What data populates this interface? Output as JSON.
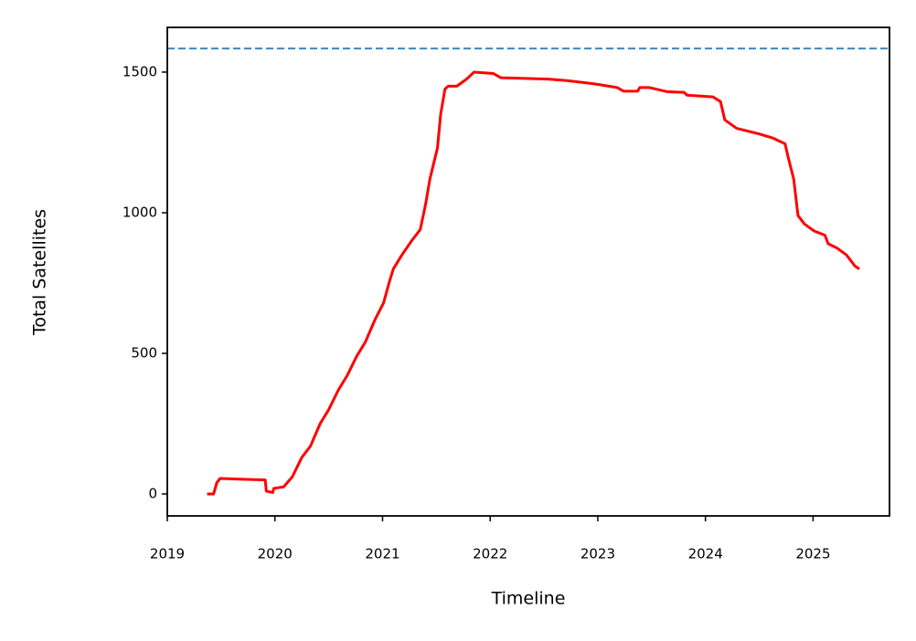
{
  "chart_data": {
    "type": "line",
    "x_label": "Timeline",
    "y_label": "Total Satellites",
    "x": [
      2019.37,
      2019.43,
      2019.46,
      2019.49,
      2019.91,
      2019.92,
      2019.98,
      2019.99,
      2020.08,
      2020.16,
      2020.25,
      2020.33,
      2020.42,
      2020.5,
      2020.59,
      2020.67,
      2020.76,
      2020.84,
      2020.93,
      2021.01,
      2021.06,
      2021.1,
      2021.18,
      2021.27,
      2021.35,
      2021.4,
      2021.44,
      2021.51,
      2021.54,
      2021.58,
      2021.61,
      2021.69,
      2021.78,
      2021.85,
      2022.03,
      2022.1,
      2022.54,
      2022.71,
      2022.97,
      2023.18,
      2023.24,
      2023.37,
      2023.39,
      2023.48,
      2023.65,
      2023.8,
      2023.83,
      2024.07,
      2024.14,
      2024.18,
      2024.29,
      2024.5,
      2024.63,
      2024.74,
      2024.77,
      2024.82,
      2024.86,
      2024.92,
      2025.01,
      2025.11,
      2025.14,
      2025.22,
      2025.31,
      2025.39,
      2025.43
    ],
    "series": [
      {
        "color": "#ff0000",
        "values": [
          0,
          0,
          40,
          55,
          50,
          10,
          5,
          20,
          25,
          60,
          130,
          170,
          250,
          300,
          370,
          420,
          490,
          540,
          620,
          680,
          750,
          800,
          850,
          900,
          940,
          1030,
          1120,
          1230,
          1350,
          1440,
          1450,
          1450,
          1475,
          1500,
          1495,
          1480,
          1475,
          1470,
          1458,
          1445,
          1432,
          1432,
          1445,
          1445,
          1430,
          1428,
          1418,
          1412,
          1395,
          1330,
          1300,
          1280,
          1265,
          1245,
          1195,
          1120,
          990,
          960,
          935,
          920,
          890,
          875,
          850,
          810,
          800
        ]
      }
    ],
    "reference_line": {
      "value": 1584,
      "color": "#3b87c4",
      "style": "dashed"
    },
    "xlim": [
      2019,
      2025.71
    ],
    "xticks": [
      2019,
      2020,
      2021,
      2022,
      2023,
      2024,
      2025
    ],
    "ylim": [
      -78,
      1659
    ],
    "yticks": [
      0,
      500,
      1000,
      1500
    ],
    "grid": false
  }
}
